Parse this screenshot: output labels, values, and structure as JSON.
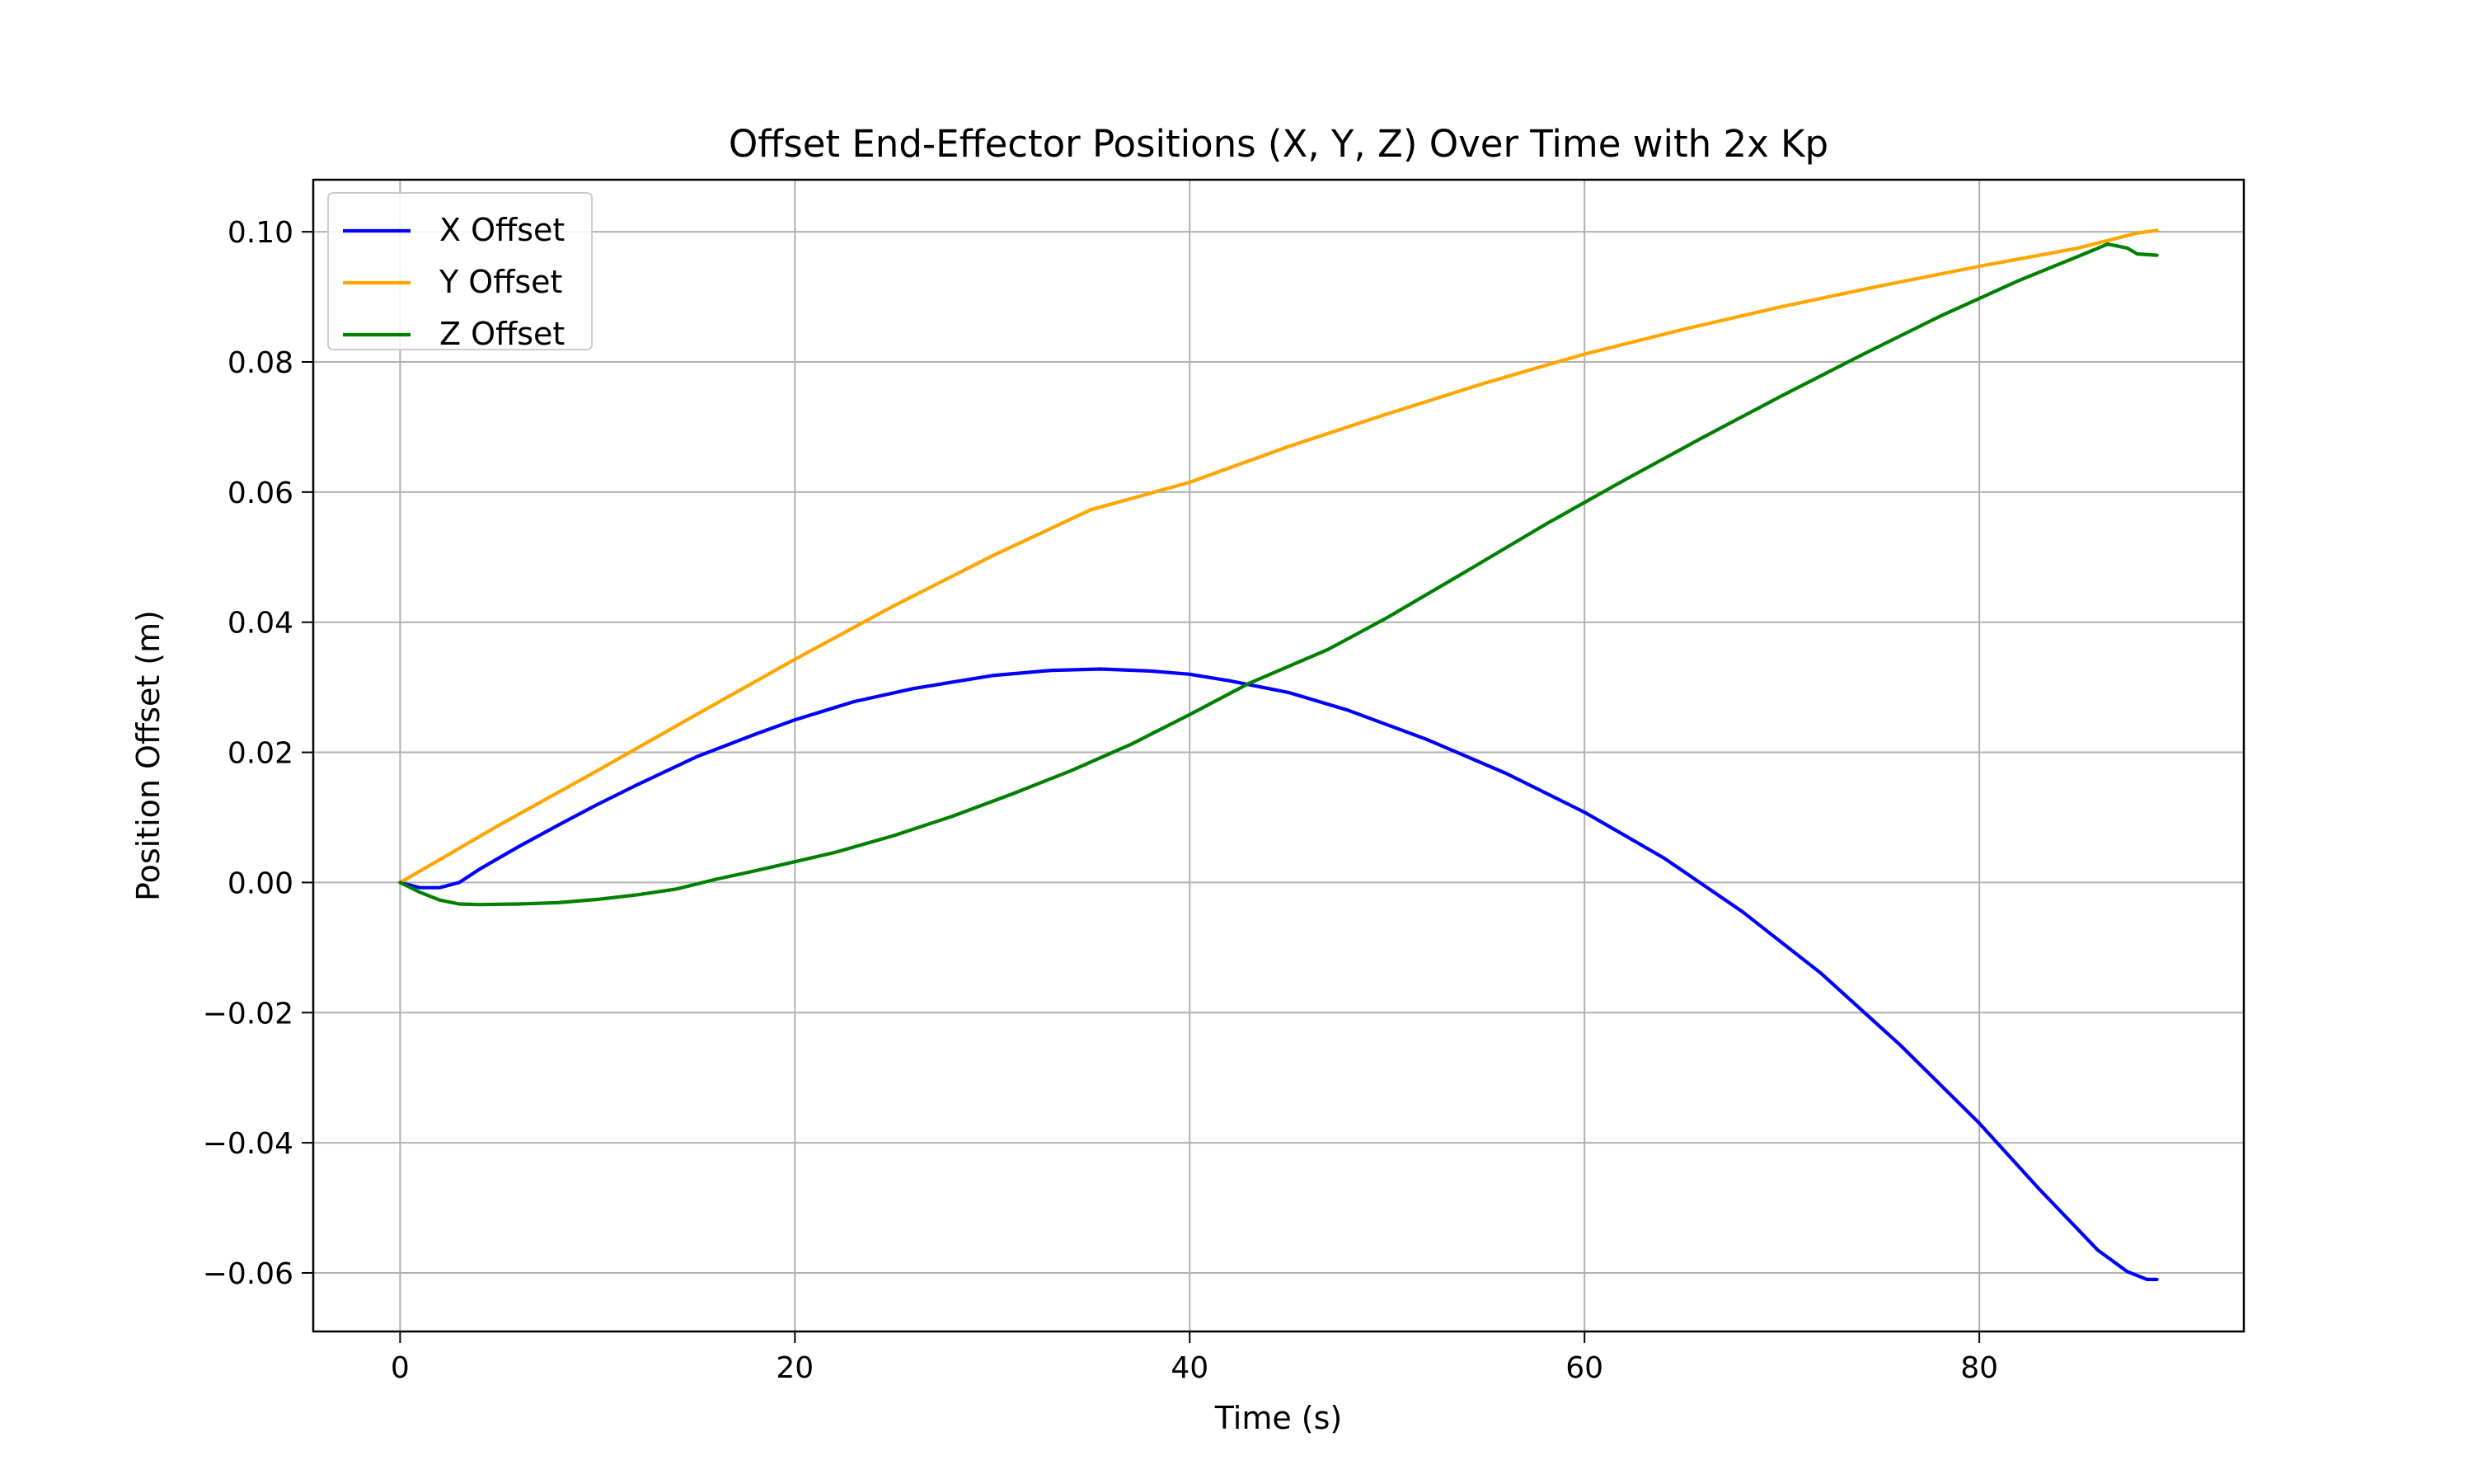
{
  "chart_data": {
    "type": "line",
    "title": "Offset End-Effector Positions (X, Y, Z) Over Time with 2x Kp",
    "xlabel": "Time (s)",
    "ylabel": "Position Offset (m)",
    "xlim": [
      -4.4,
      93.4
    ],
    "ylim": [
      -0.069,
      0.108
    ],
    "x_ticks": [
      0,
      20,
      40,
      60,
      80
    ],
    "x_tick_labels": [
      "0",
      "20",
      "40",
      "60",
      "80"
    ],
    "y_ticks": [
      -0.06,
      -0.04,
      -0.02,
      0.0,
      0.02,
      0.04,
      0.06,
      0.08,
      0.1
    ],
    "y_tick_labels": [
      "−0.06",
      "−0.04",
      "−0.02",
      "0.00",
      "0.02",
      "0.04",
      "0.06",
      "0.08",
      "0.10"
    ],
    "grid": true,
    "legend_position": "top-left",
    "series": [
      {
        "name": "X Offset",
        "color": "#0000ff",
        "x": [
          0,
          1,
          2,
          3,
          4,
          6,
          8,
          10,
          12,
          15,
          18,
          20,
          23,
          26,
          30,
          33,
          35.5,
          38,
          40,
          42,
          45,
          48,
          52,
          56,
          60,
          64,
          68,
          72,
          76,
          80,
          83,
          86,
          87.5,
          88.5,
          89
        ],
        "y": [
          0.0,
          -0.0008,
          -0.0008,
          0.0,
          0.002,
          0.0055,
          0.0088,
          0.012,
          0.015,
          0.0193,
          0.0228,
          0.025,
          0.0278,
          0.0298,
          0.0318,
          0.0326,
          0.0328,
          0.0325,
          0.032,
          0.031,
          0.0292,
          0.0265,
          0.022,
          0.0168,
          0.0108,
          0.0038,
          -0.0045,
          -0.014,
          -0.025,
          -0.037,
          -0.047,
          -0.0565,
          -0.0598,
          -0.061,
          -0.061
        ]
      },
      {
        "name": "Y Offset",
        "color": "#ffa500",
        "x": [
          0,
          2,
          5,
          10,
          15,
          20,
          25,
          30,
          35,
          40,
          45,
          50,
          55,
          60,
          65,
          70,
          75,
          80,
          85,
          88,
          89
        ],
        "y": [
          0.0,
          0.0035,
          0.0088,
          0.0172,
          0.0258,
          0.0343,
          0.0425,
          0.0502,
          0.0573,
          0.0615,
          0.067,
          0.072,
          0.0768,
          0.0812,
          0.085,
          0.0885,
          0.0917,
          0.0947,
          0.0975,
          0.0998,
          0.1002
        ]
      },
      {
        "name": "Z Offset",
        "color": "#008000",
        "x": [
          0,
          1,
          2,
          3,
          4,
          6,
          8,
          10,
          12,
          14,
          16,
          18,
          20,
          22,
          25,
          28,
          31,
          34,
          37,
          40,
          43,
          47,
          50,
          54,
          58,
          62,
          66,
          70,
          74,
          78,
          82,
          85,
          86.5,
          87.5,
          88,
          89
        ],
        "y": [
          0.0,
          -0.0015,
          -0.0027,
          -0.0033,
          -0.0034,
          -0.0033,
          -0.0031,
          -0.0026,
          -0.0019,
          -0.001,
          0.0005,
          0.0018,
          0.0032,
          0.0046,
          0.0072,
          0.0102,
          0.0136,
          0.0172,
          0.0212,
          0.0258,
          0.0306,
          0.0358,
          0.0407,
          0.0478,
          0.055,
          0.0618,
          0.0684,
          0.0748,
          0.081,
          0.087,
          0.0925,
          0.0962,
          0.0981,
          0.0975,
          0.0966,
          0.0964
        ]
      }
    ]
  }
}
